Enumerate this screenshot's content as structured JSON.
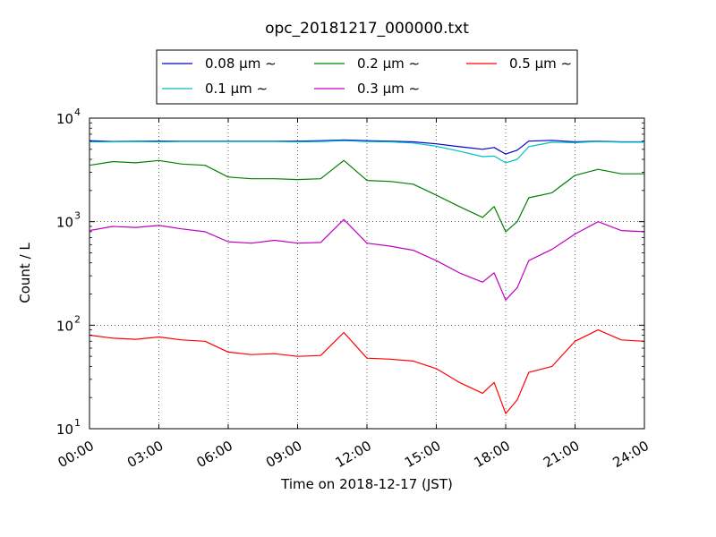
{
  "chart_data": {
    "type": "line",
    "title": "opc_20181217_000000.txt",
    "xlabel": "Time on 2018-12-17 (JST)",
    "ylabel": "Count / L",
    "yscale": "log",
    "ylim": [
      10,
      10000
    ],
    "xlim": [
      "00:00",
      "24:00"
    ],
    "grid": true,
    "legend_position": "top-center, outside plot",
    "xticks": [
      "00:00",
      "03:00",
      "06:00",
      "09:00",
      "12:00",
      "15:00",
      "18:00",
      "21:00",
      "24:00"
    ],
    "yticks": [
      {
        "base": "10",
        "exp": "1",
        "value": 10
      },
      {
        "base": "10",
        "exp": "2",
        "value": 100
      },
      {
        "base": "10",
        "exp": "3",
        "value": 1000
      },
      {
        "base": "10",
        "exp": "4",
        "value": 10000
      }
    ],
    "x": [
      "00:00",
      "01:00",
      "02:00",
      "03:00",
      "04:00",
      "05:00",
      "06:00",
      "07:00",
      "08:00",
      "09:00",
      "10:00",
      "11:00",
      "12:00",
      "13:00",
      "14:00",
      "15:00",
      "16:00",
      "17:00",
      "17:30",
      "18:00",
      "18:30",
      "19:00",
      "20:00",
      "21:00",
      "22:00",
      "23:00",
      "24:00"
    ],
    "series": [
      {
        "name": "0.08 μm ∼",
        "color": "#0000cc",
        "values": [
          6050,
          5950,
          6000,
          6000,
          6000,
          6000,
          6000,
          6000,
          6000,
          6000,
          6050,
          6150,
          6050,
          6000,
          5900,
          5650,
          5300,
          5000,
          5200,
          4500,
          4900,
          6000,
          6100,
          5900,
          6000,
          5900,
          5900
        ]
      },
      {
        "name": "0.1 μm ∼",
        "color": "#00bfbf",
        "values": [
          5900,
          5900,
          5950,
          5900,
          5950,
          5950,
          5950,
          5950,
          5950,
          5900,
          5950,
          6050,
          5950,
          5900,
          5750,
          5350,
          4800,
          4250,
          4300,
          3700,
          4000,
          5300,
          5850,
          5800,
          5950,
          5850,
          5850
        ]
      },
      {
        "name": "0.2 μm ∼",
        "color": "#008000",
        "values": [
          3500,
          3800,
          3700,
          3900,
          3600,
          3500,
          2700,
          2600,
          2600,
          2550,
          2600,
          3900,
          2500,
          2450,
          2300,
          1800,
          1400,
          1100,
          1400,
          800,
          1000,
          1700,
          1900,
          2800,
          3200,
          2900,
          2900
        ]
      },
      {
        "name": "0.3 μm ∼",
        "color": "#bf00bf",
        "values": [
          820,
          900,
          880,
          920,
          850,
          800,
          640,
          620,
          660,
          620,
          630,
          1050,
          620,
          580,
          530,
          420,
          320,
          260,
          320,
          175,
          230,
          420,
          540,
          760,
          1000,
          820,
          800
        ]
      },
      {
        "name": "0.5 μm ∼",
        "color": "#ff0000",
        "values": [
          80,
          75,
          73,
          77,
          72,
          70,
          55,
          52,
          53,
          50,
          51,
          85,
          48,
          47,
          45,
          38,
          28,
          22,
          28,
          14,
          19,
          35,
          40,
          70,
          90,
          72,
          70
        ]
      }
    ]
  }
}
